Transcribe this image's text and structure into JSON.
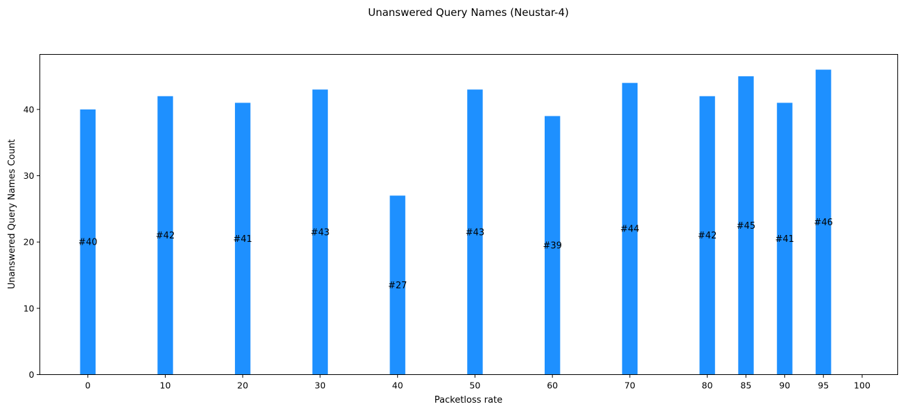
{
  "chart_data": {
    "type": "bar",
    "title": "Unanswered Query Names (Neustar-4)",
    "xlabel": "Packetloss rate",
    "ylabel": "Unanswered Query Names Count",
    "x": [
      0,
      10,
      20,
      30,
      40,
      50,
      60,
      70,
      80,
      85,
      90,
      95
    ],
    "values": [
      40,
      42,
      41,
      43,
      27,
      43,
      39,
      44,
      42,
      45,
      41,
      46
    ],
    "bar_labels": [
      "#40",
      "#42",
      "#41",
      "#43",
      "#27",
      "#43",
      "#39",
      "#44",
      "#42",
      "#45",
      "#41",
      "#46"
    ],
    "xticks": [
      0,
      10,
      20,
      30,
      40,
      50,
      60,
      70,
      80,
      85,
      90,
      95,
      100
    ],
    "yticks": [
      0,
      10,
      20,
      30,
      40
    ],
    "xlim": [
      -6.2,
      104.6
    ],
    "ylim": [
      0,
      48.3
    ],
    "bar_width": 2,
    "bar_color": "#1e90ff",
    "grid": false,
    "legend": "none"
  }
}
